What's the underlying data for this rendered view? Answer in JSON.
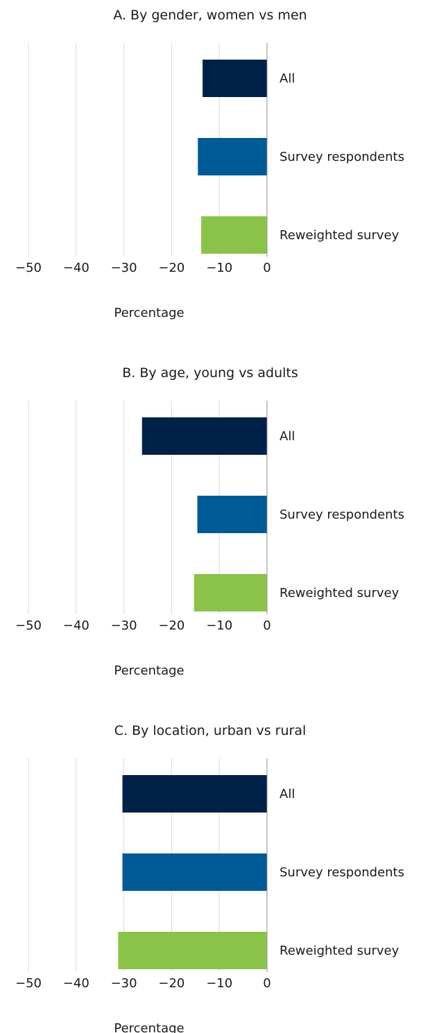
{
  "chart_data": [
    {
      "type": "bar",
      "orientation": "horizontal",
      "title": "A. By gender, women vs men",
      "xlabel": "Percentage",
      "xlim": [
        -50,
        0
      ],
      "xticks": [
        "−50",
        "−40",
        "−30",
        "−20",
        "−10",
        "0"
      ],
      "grid": true,
      "categories": [
        "All",
        "Survey respondents",
        "Reweighted survey"
      ],
      "values": [
        -13.5,
        -14.5,
        -13.8
      ],
      "colors": [
        "#002147",
        "#005a96",
        "#8bc34a"
      ]
    },
    {
      "type": "bar",
      "orientation": "horizontal",
      "title": "B. By age, young vs adults",
      "xlabel": "Percentage",
      "xlim": [
        -50,
        0
      ],
      "xticks": [
        "−50",
        "−40",
        "−30",
        "−20",
        "−10",
        "0"
      ],
      "grid": true,
      "categories": [
        "All",
        "Survey respondents",
        "Reweighted survey"
      ],
      "values": [
        -26.2,
        -14.6,
        -15.3
      ],
      "colors": [
        "#002147",
        "#005a96",
        "#8bc34a"
      ]
    },
    {
      "type": "bar",
      "orientation": "horizontal",
      "title": "C. By location, urban vs rural",
      "xlabel": "Percentage",
      "xlim": [
        -50,
        0
      ],
      "xticks": [
        "−50",
        "−40",
        "−30",
        "−20",
        "−10",
        "0"
      ],
      "grid": true,
      "categories": [
        "All",
        "Survey respondents",
        "Reweighted survey"
      ],
      "values": [
        -30.3,
        -30.3,
        -31.2
      ],
      "colors": [
        "#002147",
        "#005a96",
        "#8bc34a"
      ]
    }
  ]
}
